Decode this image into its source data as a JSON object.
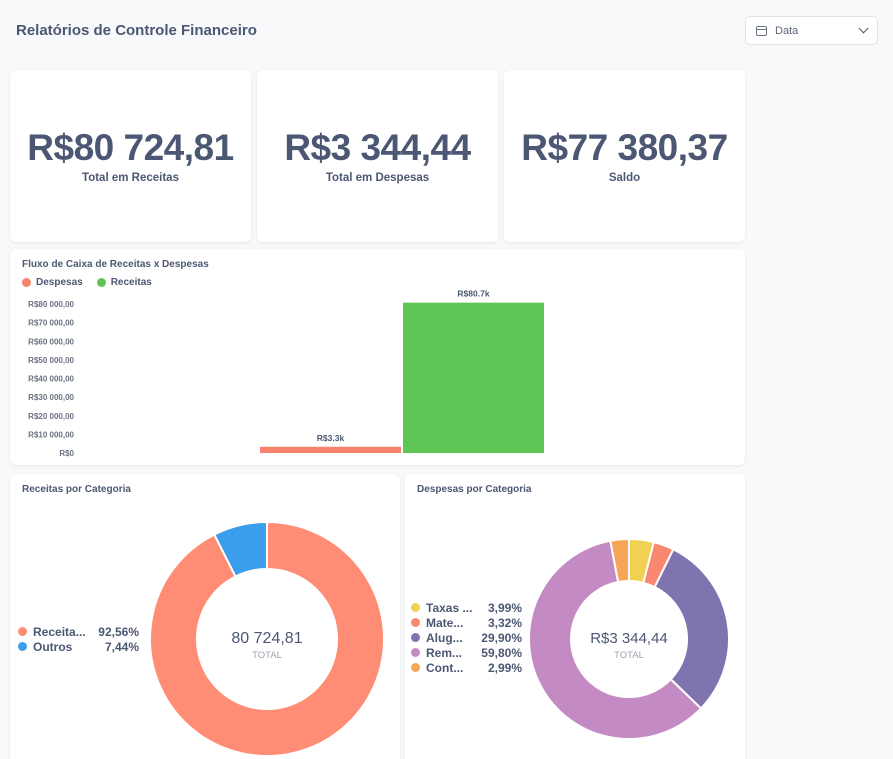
{
  "header": {
    "title": "Relatórios de Controle Financeiro"
  },
  "date_filter": {
    "label": "Data",
    "icon": "calendar-icon"
  },
  "kpis": [
    {
      "value": "R$80 724,81",
      "label": "Total em Receitas"
    },
    {
      "value": "R$3 344,44",
      "label": "Total em Despesas"
    },
    {
      "value": "R$77 380,37",
      "label": "Saldo"
    }
  ],
  "cashflow": {
    "title": "Fluxo de Caixa de Receitas x Despesas",
    "legend": [
      {
        "name": "Despesas",
        "color": "#f8826b"
      },
      {
        "name": "Receitas",
        "color": "#5ec454"
      }
    ]
  },
  "receitas_cat": {
    "title": "Receitas por Categoria",
    "center_value": "80 724,81",
    "center_label": "TOTAL",
    "legend": [
      {
        "name": "Receita...",
        "pct": "92,56%",
        "color": "#ff8c74"
      },
      {
        "name": "Outros",
        "pct": "7,44%",
        "color": "#3a9eed"
      }
    ]
  },
  "despesas_cat": {
    "title": "Despesas por Categoria",
    "center_value": "R$3 344,44",
    "center_label": "TOTAL",
    "legend": [
      {
        "name": "Taxas ...",
        "pct": "3,99%",
        "color": "#f1d052"
      },
      {
        "name": "Mate...",
        "pct": "3,32%",
        "color": "#fa8870"
      },
      {
        "name": "Alug...",
        "pct": "29,90%",
        "color": "#7f74b0"
      },
      {
        "name": "Rem...",
        "pct": "59,80%",
        "color": "#c48ac4"
      },
      {
        "name": "Cont...",
        "pct": "2,99%",
        "color": "#f7a556"
      }
    ]
  },
  "chart_data": [
    {
      "type": "bar",
      "title": "Fluxo de Caixa de Receitas x Despesas",
      "series": [
        {
          "name": "Despesas",
          "values": [
            3344.44
          ],
          "label": "R$3.3k"
        },
        {
          "name": "Receitas",
          "values": [
            80724.81
          ],
          "label": "R$80.7k"
        }
      ],
      "yticks": [
        "R$0",
        "R$10 000,00",
        "R$20 000,00",
        "R$30 000,00",
        "R$40 000,00",
        "R$50 000,00",
        "R$60 000,00",
        "R$70 000,00",
        "R$80 000,00"
      ],
      "ylim": [
        0,
        80000
      ],
      "legend": "top-left"
    },
    {
      "type": "pie",
      "title": "Receitas por Categoria",
      "labels": [
        "Receita...",
        "Outros"
      ],
      "values": [
        92.56,
        7.44
      ]
    },
    {
      "type": "pie",
      "title": "Despesas por Categoria",
      "labels": [
        "Taxas ...",
        "Mate...",
        "Alug...",
        "Rem...",
        "Cont..."
      ],
      "values": [
        3.99,
        3.32,
        29.9,
        59.8,
        2.99
      ]
    }
  ]
}
